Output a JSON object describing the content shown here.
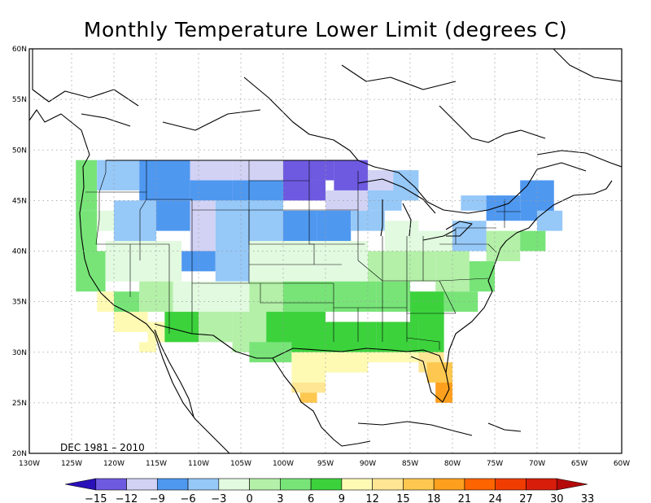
{
  "title": "Monthly Temperature Lower Limit (degrees C)",
  "period": "DEC 1981 – 2010",
  "lon_labels": [
    "130W",
    "125W",
    "120W",
    "115W",
    "110W",
    "105W",
    "100W",
    "95W",
    "90W",
    "85W",
    "80W",
    "75W",
    "70W",
    "65W",
    "60W"
  ],
  "lat_labels": [
    "60N",
    "55N",
    "50N",
    "45N",
    "40N",
    "35N",
    "30N",
    "25N",
    "20N"
  ],
  "colorbar": {
    "ticks": [
      "-15",
      "-12",
      "-9",
      "-6",
      "-3",
      "0",
      "3",
      "6",
      "9",
      "12",
      "15",
      "18",
      "21",
      "24",
      "27",
      "30",
      "33"
    ],
    "colors": [
      "#2a10b8",
      "#6e5ae0",
      "#d2d2f5",
      "#4f98f0",
      "#96c8f8",
      "#e2fae0",
      "#b4f0a8",
      "#78e478",
      "#3cd23c",
      "#fefab4",
      "#fee694",
      "#fec850",
      "#fea01e",
      "#fe6400",
      "#f03c00",
      "#d81e0a",
      "#b40a0a"
    ]
  },
  "colors": {
    "coast": "#000000",
    "grid": "#9a9a9a"
  }
}
